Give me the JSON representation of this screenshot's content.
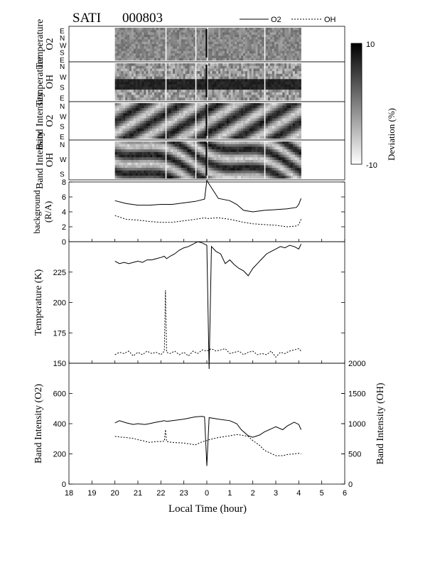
{
  "header": {
    "instrument": "SATI",
    "date": "000803"
  },
  "legend": {
    "o2": "O2",
    "oh": "OH"
  },
  "colorbar": {
    "label": "Deviation (%)",
    "max": "10",
    "min": "-10"
  },
  "keograms": {
    "panels": [
      {
        "title1": "Temperature",
        "title2": "O2",
        "dirs": [
          "E",
          "N",
          "W",
          "S",
          "E"
        ]
      },
      {
        "title1": "Temperature",
        "title2": "OH",
        "dirs": [
          "N",
          "W",
          "S",
          "E"
        ]
      },
      {
        "title1": "Band Intensity",
        "title2": "O2",
        "dirs": [
          "N",
          "W",
          "S",
          "E"
        ]
      },
      {
        "title1": "Band Intensity",
        "title2": "OH",
        "dirs": [
          "N",
          "W",
          "S"
        ]
      }
    ]
  },
  "xaxis": {
    "label": "Local Time (hour)",
    "ticks": [
      "18",
      "19",
      "20",
      "21",
      "22",
      "23",
      "0",
      "1",
      "2",
      "3",
      "4",
      "5",
      "6"
    ]
  },
  "chart_data": [
    {
      "type": "line",
      "panel": "background",
      "ylabel1": "background",
      "ylabel2": "(R/A)",
      "ylim": [
        0,
        8
      ],
      "yticks": [
        "0",
        "2",
        "4",
        "6",
        "8"
      ],
      "x": [
        20.0,
        20.5,
        21.0,
        21.5,
        22.0,
        22.5,
        23.0,
        23.5,
        23.9,
        24.0,
        24.5,
        25.0,
        25.3,
        25.6,
        26.0,
        26.5,
        27.0,
        27.5,
        27.9,
        28.0,
        28.1
      ],
      "series": [
        {
          "name": "O2",
          "values": [
            5.5,
            5.1,
            4.9,
            4.9,
            5.0,
            5.0,
            5.2,
            5.4,
            5.7,
            8.2,
            5.8,
            5.5,
            5.0,
            4.2,
            4.0,
            4.2,
            4.3,
            4.4,
            4.6,
            5.0,
            5.8
          ]
        },
        {
          "name": "OH",
          "values": [
            3.5,
            3.0,
            2.9,
            2.7,
            2.6,
            2.6,
            2.8,
            3.0,
            3.2,
            3.1,
            3.2,
            3.0,
            2.8,
            2.6,
            2.4,
            2.3,
            2.2,
            2.0,
            2.1,
            2.3,
            3.0
          ]
        }
      ]
    },
    {
      "type": "line",
      "panel": "temperature",
      "ylabel": "Temperature (K)",
      "ylim": [
        150,
        250
      ],
      "yticks": [
        "150",
        "175",
        "200",
        "225"
      ],
      "x": [
        20.0,
        20.2,
        20.4,
        20.6,
        20.8,
        21.0,
        21.2,
        21.4,
        21.6,
        21.8,
        22.0,
        22.15,
        22.2,
        22.25,
        22.4,
        22.6,
        22.8,
        23.0,
        23.2,
        23.4,
        23.6,
        23.8,
        24.0,
        24.1,
        24.2,
        24.4,
        24.6,
        24.8,
        25.0,
        25.2,
        25.4,
        25.6,
        25.8,
        26.0,
        26.2,
        26.4,
        26.6,
        26.8,
        27.0,
        27.2,
        27.4,
        27.6,
        27.8,
        28.0,
        28.1
      ],
      "series": [
        {
          "name": "O2",
          "values": [
            234,
            232,
            233,
            232,
            233,
            234,
            233,
            235,
            235,
            236,
            237,
            238,
            237,
            236,
            238,
            240,
            243,
            245,
            246,
            248,
            250,
            249,
            247,
            145,
            246,
            242,
            240,
            232,
            235,
            231,
            228,
            226,
            222,
            228,
            232,
            236,
            240,
            242,
            244,
            246,
            245,
            247,
            246,
            244,
            248
          ]
        },
        {
          "name": "OH",
          "values": [
            157,
            159,
            158,
            160,
            156,
            159,
            157,
            160,
            158,
            159,
            157,
            160,
            210,
            159,
            158,
            160,
            157,
            159,
            156,
            160,
            158,
            161,
            160,
            161,
            162,
            160,
            161,
            162,
            158,
            159,
            160,
            157,
            159,
            160,
            157,
            158,
            157,
            160,
            155,
            159,
            158,
            160,
            161,
            162,
            160
          ]
        }
      ]
    },
    {
      "type": "line",
      "panel": "band_intensity",
      "ylabel_left": "Band Intensity (O2)",
      "ylabel_right": "Band Intensity (OH)",
      "ylim_left": [
        0,
        800
      ],
      "ylim_right": [
        0,
        2000
      ],
      "yticks_left": [
        "0",
        "200",
        "400",
        "600"
      ],
      "yticks_right": [
        "0",
        "500",
        "1000",
        "1500",
        "2000"
      ],
      "x": [
        20.0,
        20.2,
        20.5,
        20.8,
        21.0,
        21.3,
        21.5,
        21.8,
        22.0,
        22.15,
        22.2,
        22.25,
        22.5,
        23.0,
        23.5,
        23.8,
        23.9,
        24.0,
        24.1,
        24.5,
        25.0,
        25.3,
        25.5,
        25.8,
        26.0,
        26.3,
        26.5,
        27.0,
        27.3,
        27.5,
        27.8,
        28.0,
        28.1
      ],
      "series": [
        {
          "name": "O2",
          "values": [
            405,
            420,
            405,
            395,
            400,
            395,
            400,
            410,
            415,
            420,
            418,
            415,
            420,
            430,
            445,
            448,
            445,
            120,
            440,
            430,
            420,
            400,
            360,
            320,
            310,
            325,
            345,
            380,
            360,
            385,
            410,
            395,
            360
          ]
        },
        {
          "name": "OH",
          "values": [
            790,
            780,
            770,
            755,
            735,
            710,
            690,
            705,
            705,
            710,
            900,
            705,
            690,
            680,
            650,
            700,
            710,
            720,
            735,
            770,
            800,
            820,
            810,
            790,
            720,
            640,
            560,
            470,
            470,
            490,
            500,
            510,
            500
          ]
        }
      ]
    }
  ]
}
